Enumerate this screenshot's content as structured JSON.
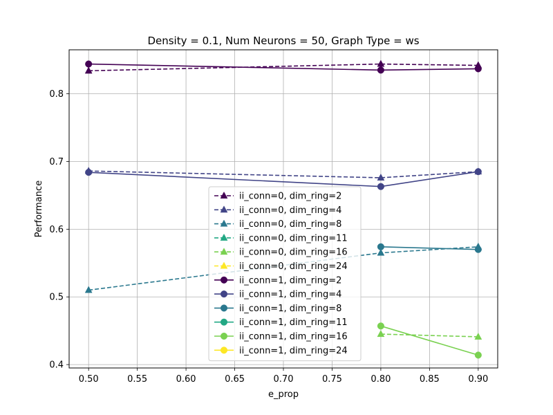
{
  "chart_data": {
    "type": "line",
    "title": "Density = 0.1, Num Neurons = 50, Graph Type = ws",
    "xlabel": "e_prop",
    "ylabel": "Performance",
    "xlim": [
      0.48,
      0.92
    ],
    "ylim": [
      0.395,
      0.865
    ],
    "xticks": [
      0.5,
      0.55,
      0.6,
      0.65,
      0.7,
      0.75,
      0.8,
      0.85,
      0.9
    ],
    "xtick_labels": [
      "0.50",
      "0.55",
      "0.60",
      "0.65",
      "0.70",
      "0.75",
      "0.80",
      "0.85",
      "0.90"
    ],
    "yticks": [
      0.4,
      0.5,
      0.6,
      0.7,
      0.8
    ],
    "ytick_labels": [
      "0.4",
      "0.5",
      "0.6",
      "0.7",
      "0.8"
    ],
    "grid": true,
    "legend_position": "center-bottom",
    "series": [
      {
        "name": "ii_conn=0, dim_ring=2",
        "color": "#440154",
        "style": "dashed",
        "marker": "triangle",
        "x": [
          0.5,
          0.8,
          0.9
        ],
        "y": [
          0.834,
          0.844,
          0.842
        ]
      },
      {
        "name": "ii_conn=0, dim_ring=4",
        "color": "#414487",
        "style": "dashed",
        "marker": "triangle",
        "x": [
          0.5,
          0.8,
          0.9
        ],
        "y": [
          0.686,
          0.676,
          0.685
        ]
      },
      {
        "name": "ii_conn=0, dim_ring=8",
        "color": "#2a788e",
        "style": "dashed",
        "marker": "triangle",
        "x": [
          0.5,
          0.8,
          0.9
        ],
        "y": [
          0.51,
          0.565,
          0.574
        ]
      },
      {
        "name": "ii_conn=0, dim_ring=11",
        "color": "#22a884",
        "style": "dashed",
        "marker": "triangle",
        "x": [],
        "y": []
      },
      {
        "name": "ii_conn=0, dim_ring=16",
        "color": "#7ad151",
        "style": "dashed",
        "marker": "triangle",
        "x": [
          0.8,
          0.9
        ],
        "y": [
          0.445,
          0.441
        ]
      },
      {
        "name": "ii_conn=0, dim_ring=24",
        "color": "#fde725",
        "style": "dashed",
        "marker": "triangle",
        "x": [],
        "y": []
      },
      {
        "name": "ii_conn=1, dim_ring=2",
        "color": "#440154",
        "style": "solid",
        "marker": "circle",
        "x": [
          0.5,
          0.8,
          0.9
        ],
        "y": [
          0.844,
          0.835,
          0.837
        ]
      },
      {
        "name": "ii_conn=1, dim_ring=4",
        "color": "#414487",
        "style": "solid",
        "marker": "circle",
        "x": [
          0.5,
          0.8,
          0.9
        ],
        "y": [
          0.684,
          0.663,
          0.685
        ]
      },
      {
        "name": "ii_conn=1, dim_ring=8",
        "color": "#2a788e",
        "style": "solid",
        "marker": "circle",
        "x": [
          0.8,
          0.9
        ],
        "y": [
          0.574,
          0.57
        ]
      },
      {
        "name": "ii_conn=1, dim_ring=11",
        "color": "#22a884",
        "style": "solid",
        "marker": "circle",
        "x": [],
        "y": []
      },
      {
        "name": "ii_conn=1, dim_ring=16",
        "color": "#7ad151",
        "style": "solid",
        "marker": "circle",
        "x": [
          0.8,
          0.9
        ],
        "y": [
          0.457,
          0.414
        ]
      },
      {
        "name": "ii_conn=1, dim_ring=24",
        "color": "#fde725",
        "style": "solid",
        "marker": "circle",
        "x": [],
        "y": []
      }
    ]
  }
}
